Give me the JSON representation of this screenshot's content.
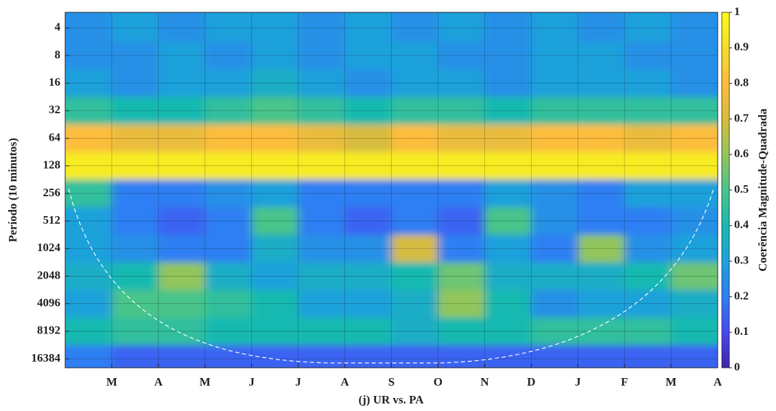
{
  "chart_data": {
    "type": "heatmap",
    "title": "(j) UR vs. PA",
    "y_label": "Período (10 minutos)",
    "colorbar_label": "Coerência Magnitude-Quadrada",
    "xlim": [
      0,
      14
    ],
    "xticks": [
      {
        "value": 1,
        "label": "M"
      },
      {
        "value": 2,
        "label": "A"
      },
      {
        "value": 3,
        "label": "M"
      },
      {
        "value": 4,
        "label": "J"
      },
      {
        "value": 5,
        "label": "J"
      },
      {
        "value": 6,
        "label": "A"
      },
      {
        "value": 7,
        "label": "S"
      },
      {
        "value": 8,
        "label": "O"
      },
      {
        "value": 9,
        "label": "N"
      },
      {
        "value": 10,
        "label": "D"
      },
      {
        "value": 11,
        "label": "J"
      },
      {
        "value": 12,
        "label": "F"
      },
      {
        "value": 13,
        "label": "M"
      },
      {
        "value": 14,
        "label": "A"
      }
    ],
    "ylim": [
      2.7,
      20500
    ],
    "yscale": "log2",
    "yticks": [
      4,
      8,
      16,
      32,
      64,
      128,
      256,
      512,
      1024,
      2048,
      4096,
      8192,
      16384
    ],
    "grid": true,
    "clim": [
      0,
      1
    ],
    "cticks": [
      0,
      0.1,
      0.2,
      0.3,
      0.4,
      0.5,
      0.6,
      0.7,
      0.8,
      0.9,
      1
    ],
    "colormap": [
      "#3e26a8",
      "#4748f0",
      "#2e7ff3",
      "#1fa1db",
      "#19b9b0",
      "#4ac48a",
      "#92c65c",
      "#d6bb3f",
      "#fdbd3d",
      "#f4dc2c",
      "#f9fb15"
    ],
    "coherence": {
      "x": [
        0.5,
        1.5,
        2.5,
        3.5,
        4.5,
        5.5,
        6.5,
        7.5,
        8.5,
        9.5,
        10.5,
        11.5,
        12.5,
        13.5
      ],
      "periods": [
        4,
        8,
        16,
        32,
        64,
        128,
        256,
        512,
        1024,
        2048,
        4096,
        8192,
        16384
      ],
      "values": [
        [
          0.25,
          0.3,
          0.25,
          0.3,
          0.3,
          0.25,
          0.3,
          0.25,
          0.3,
          0.25,
          0.3,
          0.25,
          0.3,
          0.25
        ],
        [
          0.25,
          0.25,
          0.3,
          0.25,
          0.3,
          0.25,
          0.3,
          0.3,
          0.25,
          0.25,
          0.3,
          0.3,
          0.25,
          0.25
        ],
        [
          0.3,
          0.25,
          0.3,
          0.3,
          0.35,
          0.3,
          0.25,
          0.3,
          0.3,
          0.25,
          0.3,
          0.3,
          0.3,
          0.25
        ],
        [
          0.45,
          0.4,
          0.4,
          0.45,
          0.5,
          0.45,
          0.4,
          0.45,
          0.45,
          0.4,
          0.45,
          0.45,
          0.45,
          0.45
        ],
        [
          0.8,
          0.75,
          0.75,
          0.8,
          0.8,
          0.75,
          0.7,
          0.8,
          0.75,
          0.75,
          0.8,
          0.8,
          0.75,
          0.8
        ],
        [
          0.95,
          0.95,
          0.95,
          0.95,
          0.95,
          0.95,
          0.95,
          0.95,
          0.95,
          0.95,
          0.95,
          0.95,
          0.95,
          0.95
        ],
        [
          0.45,
          0.2,
          0.2,
          0.25,
          0.3,
          0.2,
          0.2,
          0.2,
          0.2,
          0.3,
          0.25,
          0.2,
          0.3,
          0.3
        ],
        [
          0.3,
          0.2,
          0.15,
          0.2,
          0.5,
          0.2,
          0.15,
          0.2,
          0.15,
          0.5,
          0.25,
          0.2,
          0.2,
          0.25
        ],
        [
          0.3,
          0.25,
          0.2,
          0.2,
          0.35,
          0.25,
          0.25,
          0.7,
          0.2,
          0.3,
          0.2,
          0.6,
          0.25,
          0.3
        ],
        [
          0.35,
          0.4,
          0.6,
          0.35,
          0.3,
          0.35,
          0.35,
          0.4,
          0.55,
          0.35,
          0.35,
          0.35,
          0.4,
          0.55
        ],
        [
          0.3,
          0.5,
          0.5,
          0.45,
          0.4,
          0.3,
          0.3,
          0.35,
          0.6,
          0.4,
          0.25,
          0.3,
          0.3,
          0.35
        ],
        [
          0.4,
          0.45,
          0.45,
          0.4,
          0.4,
          0.4,
          0.4,
          0.35,
          0.4,
          0.4,
          0.45,
          0.45,
          0.45,
          0.4
        ],
        [
          0.2,
          0.15,
          0.15,
          0.15,
          0.15,
          0.15,
          0.15,
          0.15,
          0.15,
          0.15,
          0.15,
          0.15,
          0.15,
          0.15
        ]
      ]
    }
  }
}
